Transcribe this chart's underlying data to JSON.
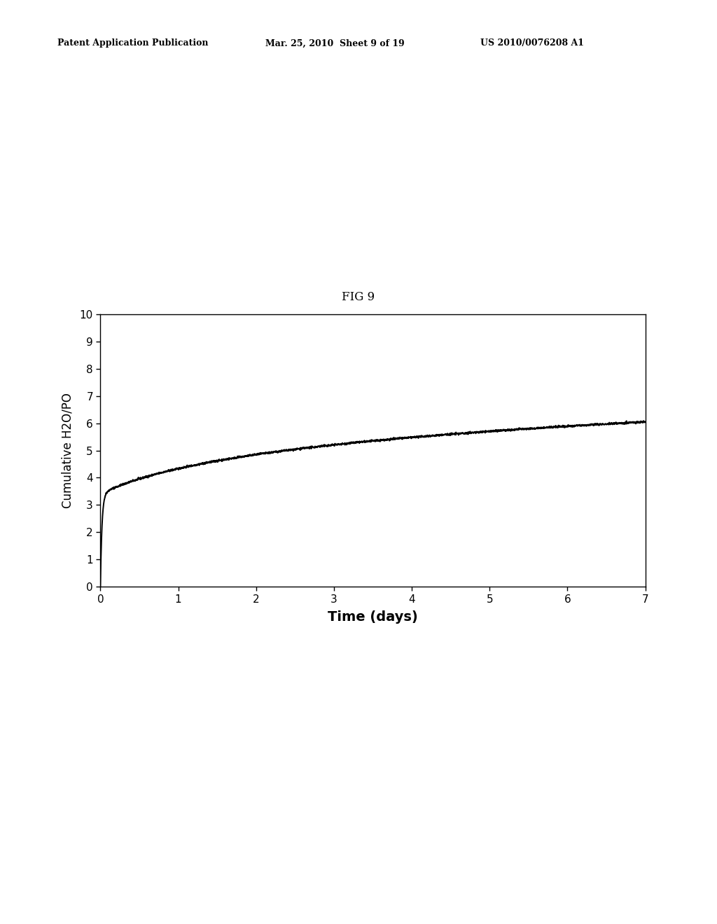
{
  "title": "FIG 9",
  "xlabel": "Time (days)",
  "ylabel": "Cumulative H2O/PO",
  "xlim": [
    0,
    7
  ],
  "ylim": [
    0,
    10
  ],
  "xticks": [
    0,
    1,
    2,
    3,
    4,
    5,
    6,
    7
  ],
  "yticks": [
    0,
    1,
    2,
    3,
    4,
    5,
    6,
    7,
    8,
    9,
    10
  ],
  "line_color": "#000000",
  "background_color": "#ffffff",
  "header_left": "Patent Application Publication",
  "header_mid": "Mar. 25, 2010  Sheet 9 of 19",
  "header_right": "US 2010/0076208 A1",
  "title_fontsize": 12,
  "xlabel_fontsize": 14,
  "ylabel_fontsize": 12,
  "tick_fontsize": 11,
  "header_fontsize": 9,
  "fig_title_fontsize": 12
}
